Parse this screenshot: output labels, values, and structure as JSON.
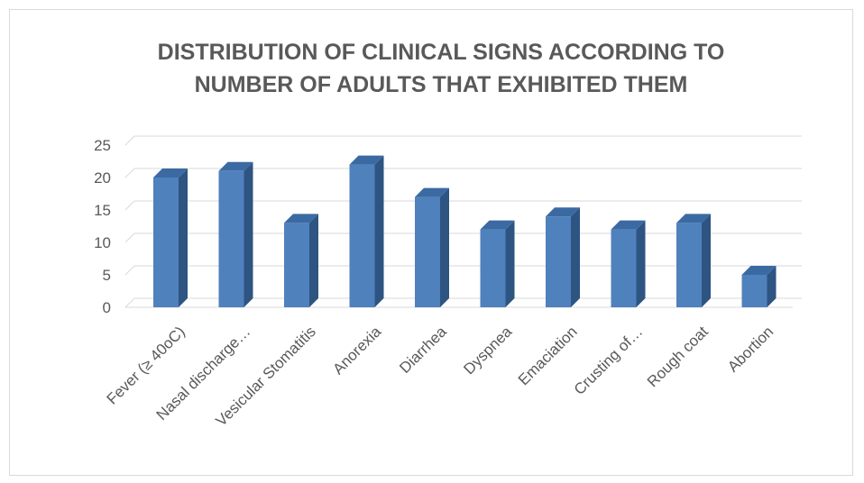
{
  "chart_data": {
    "type": "bar",
    "title_lines": [
      "DISTRIBUTION OF CLINICAL SIGNS ACCORDING TO",
      "NUMBER OF ADULTS THAT EXHIBITED THEM"
    ],
    "xlabel": "",
    "ylabel": "",
    "ylim": [
      0,
      25
    ],
    "yticks": [
      0,
      5,
      10,
      15,
      20,
      25
    ],
    "grid": true,
    "legend": "none",
    "three_d": true,
    "categories": [
      "Fever (≥ 40oC)",
      "Nasal discharge…",
      "Vesicular Stomatitis",
      "Anorexia",
      "Diarrhea",
      "Dyspnea",
      "Emaciation",
      "Crusting of…",
      "Rough coat",
      "Abortion"
    ],
    "values": [
      20,
      21,
      13,
      22,
      17,
      12,
      14,
      12,
      13,
      5
    ],
    "colors": {
      "bar_front": "#4f81bd",
      "bar_side": "#2e5482",
      "bar_top": "#3b6aa3",
      "grid": "#d9d9d9",
      "text": "#595959"
    }
  }
}
